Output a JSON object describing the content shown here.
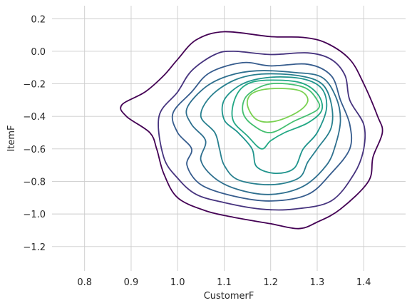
{
  "chart_data": {
    "type": "kde_contour",
    "xlabel": "CustomerF",
    "ylabel": "ItemF",
    "xlim": [
      0.73,
      1.49
    ],
    "ylim": [
      -1.35,
      0.28
    ],
    "xticks": [
      0.8,
      0.9,
      1.0,
      1.1,
      1.2,
      1.3,
      1.4
    ],
    "xtick_labels": [
      "0.8",
      "0.9",
      "1.0",
      "1.1",
      "1.2",
      "1.3",
      "1.4"
    ],
    "yticks": [
      0.2,
      0.0,
      -0.2,
      -0.4,
      -0.6,
      -0.8,
      -1.0,
      -1.2
    ],
    "ytick_labels": [
      "0.2",
      "0.0",
      "−0.2",
      "−0.4",
      "−0.6",
      "−0.8",
      "−1.0",
      "−1.2"
    ],
    "grid": true,
    "colormap": "viridis",
    "levels": [
      {
        "level": 1,
        "color": "#440154",
        "points": [
          [
            1.1,
            0.12
          ],
          [
            1.2,
            0.09
          ],
          [
            1.27,
            0.085
          ],
          [
            1.32,
            0.05
          ],
          [
            1.37,
            -0.05
          ],
          [
            1.4,
            -0.2
          ],
          [
            1.43,
            -0.4
          ],
          [
            1.44,
            -0.5
          ],
          [
            1.42,
            -0.65
          ],
          [
            1.41,
            -0.8
          ],
          [
            1.35,
            -0.97
          ],
          [
            1.3,
            -1.05
          ],
          [
            1.26,
            -1.09
          ],
          [
            1.2,
            -1.06
          ],
          [
            1.12,
            -1.02
          ],
          [
            1.06,
            -0.98
          ],
          [
            1.0,
            -0.9
          ],
          [
            0.97,
            -0.75
          ],
          [
            0.955,
            -0.6
          ],
          [
            0.94,
            -0.5
          ],
          [
            0.89,
            -0.4
          ],
          [
            0.88,
            -0.33
          ],
          [
            0.93,
            -0.25
          ],
          [
            0.97,
            -0.15
          ],
          [
            1.0,
            -0.05
          ],
          [
            1.04,
            0.07
          ],
          [
            1.1,
            0.12
          ]
        ]
      },
      {
        "level": 2,
        "color": "#46337e",
        "points": [
          [
            1.12,
            0.0
          ],
          [
            1.2,
            -0.02
          ],
          [
            1.28,
            -0.01
          ],
          [
            1.33,
            -0.05
          ],
          [
            1.36,
            -0.15
          ],
          [
            1.37,
            -0.3
          ],
          [
            1.4,
            -0.45
          ],
          [
            1.4,
            -0.6
          ],
          [
            1.38,
            -0.75
          ],
          [
            1.33,
            -0.92
          ],
          [
            1.25,
            -0.97
          ],
          [
            1.18,
            -0.97
          ],
          [
            1.1,
            -0.93
          ],
          [
            1.04,
            -0.88
          ],
          [
            1.0,
            -0.78
          ],
          [
            0.97,
            -0.65
          ],
          [
            0.96,
            -0.4
          ],
          [
            1.0,
            -0.25
          ],
          [
            1.03,
            -0.12
          ],
          [
            1.08,
            -0.02
          ],
          [
            1.12,
            0.0
          ]
        ]
      },
      {
        "level": 3,
        "color": "#365c8d",
        "points": [
          [
            1.14,
            -0.07
          ],
          [
            1.2,
            -0.09
          ],
          [
            1.28,
            -0.08
          ],
          [
            1.33,
            -0.15
          ],
          [
            1.35,
            -0.3
          ],
          [
            1.37,
            -0.45
          ],
          [
            1.37,
            -0.6
          ],
          [
            1.33,
            -0.75
          ],
          [
            1.28,
            -0.88
          ],
          [
            1.2,
            -0.92
          ],
          [
            1.12,
            -0.89
          ],
          [
            1.05,
            -0.82
          ],
          [
            1.02,
            -0.7
          ],
          [
            1.03,
            -0.6
          ],
          [
            1.0,
            -0.5
          ],
          [
            0.99,
            -0.38
          ],
          [
            1.03,
            -0.25
          ],
          [
            1.07,
            -0.13
          ],
          [
            1.14,
            -0.07
          ]
        ]
      },
      {
        "level": 4,
        "color": "#2e6f8e",
        "points": [
          [
            1.17,
            -0.12
          ],
          [
            1.25,
            -0.13
          ],
          [
            1.31,
            -0.16
          ],
          [
            1.34,
            -0.28
          ],
          [
            1.35,
            -0.42
          ],
          [
            1.34,
            -0.57
          ],
          [
            1.32,
            -0.7
          ],
          [
            1.27,
            -0.83
          ],
          [
            1.2,
            -0.88
          ],
          [
            1.13,
            -0.85
          ],
          [
            1.08,
            -0.78
          ],
          [
            1.05,
            -0.67
          ],
          [
            1.06,
            -0.55
          ],
          [
            1.03,
            -0.45
          ],
          [
            1.02,
            -0.35
          ],
          [
            1.06,
            -0.22
          ],
          [
            1.11,
            -0.15
          ],
          [
            1.17,
            -0.12
          ]
        ]
      },
      {
        "level": 5,
        "color": "#277f8e",
        "points": [
          [
            1.18,
            -0.14
          ],
          [
            1.26,
            -0.15
          ],
          [
            1.31,
            -0.2
          ],
          [
            1.33,
            -0.32
          ],
          [
            1.33,
            -0.47
          ],
          [
            1.3,
            -0.6
          ],
          [
            1.28,
            -0.68
          ],
          [
            1.26,
            -0.78
          ],
          [
            1.2,
            -0.82
          ],
          [
            1.13,
            -0.79
          ],
          [
            1.1,
            -0.7
          ],
          [
            1.09,
            -0.6
          ],
          [
            1.08,
            -0.5
          ],
          [
            1.05,
            -0.4
          ],
          [
            1.07,
            -0.28
          ],
          [
            1.12,
            -0.18
          ],
          [
            1.18,
            -0.14
          ]
        ]
      },
      {
        "level": 6,
        "color": "#1f948c",
        "points": [
          [
            1.2,
            -0.16
          ],
          [
            1.27,
            -0.17
          ],
          [
            1.31,
            -0.23
          ],
          [
            1.32,
            -0.35
          ],
          [
            1.3,
            -0.5
          ],
          [
            1.27,
            -0.6
          ],
          [
            1.25,
            -0.72
          ],
          [
            1.21,
            -0.75
          ],
          [
            1.17,
            -0.71
          ],
          [
            1.16,
            -0.6
          ],
          [
            1.13,
            -0.5
          ],
          [
            1.1,
            -0.42
          ],
          [
            1.1,
            -0.3
          ],
          [
            1.14,
            -0.2
          ],
          [
            1.2,
            -0.16
          ]
        ]
      },
      {
        "level": 7,
        "color": "#22a884",
        "points": [
          [
            1.18,
            -0.18
          ],
          [
            1.26,
            -0.19
          ],
          [
            1.3,
            -0.26
          ],
          [
            1.31,
            -0.36
          ],
          [
            1.28,
            -0.44
          ],
          [
            1.23,
            -0.5
          ],
          [
            1.2,
            -0.55
          ],
          [
            1.18,
            -0.6
          ],
          [
            1.15,
            -0.52
          ],
          [
            1.12,
            -0.43
          ],
          [
            1.12,
            -0.32
          ],
          [
            1.14,
            -0.22
          ],
          [
            1.18,
            -0.18
          ]
        ]
      },
      {
        "level": 8,
        "color": "#44bf70",
        "points": [
          [
            1.2,
            -0.2
          ],
          [
            1.27,
            -0.22
          ],
          [
            1.3,
            -0.3
          ],
          [
            1.3,
            -0.36
          ],
          [
            1.25,
            -0.43
          ],
          [
            1.2,
            -0.5
          ],
          [
            1.16,
            -0.45
          ],
          [
            1.14,
            -0.37
          ],
          [
            1.15,
            -0.27
          ],
          [
            1.2,
            -0.2
          ]
        ]
      },
      {
        "level": 9,
        "color": "#7ad151",
        "points": [
          [
            1.2,
            -0.23
          ],
          [
            1.26,
            -0.24
          ],
          [
            1.28,
            -0.3
          ],
          [
            1.26,
            -0.37
          ],
          [
            1.21,
            -0.43
          ],
          [
            1.17,
            -0.42
          ],
          [
            1.15,
            -0.33
          ],
          [
            1.16,
            -0.26
          ],
          [
            1.2,
            -0.23
          ]
        ]
      }
    ]
  }
}
